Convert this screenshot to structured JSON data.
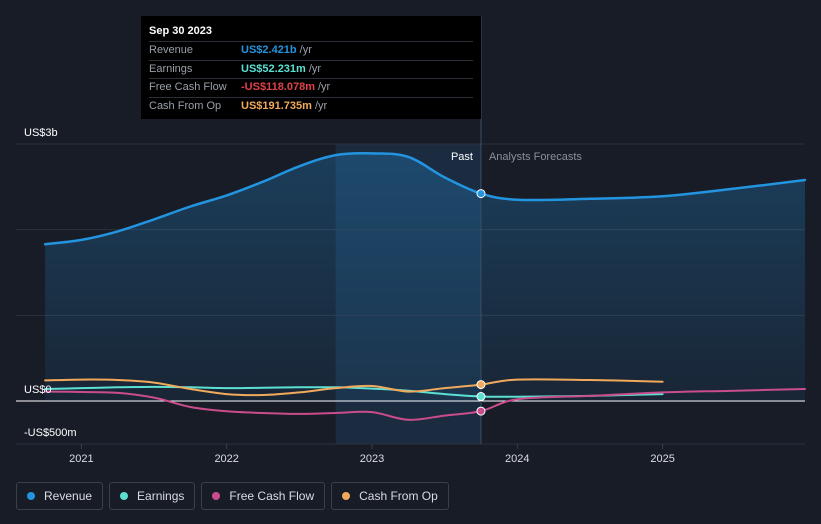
{
  "tooltip": {
    "date": "Sep 30 2023",
    "rows": [
      {
        "label": "Revenue",
        "value": "US$2.421b",
        "unit": "/yr",
        "color": "#2394df"
      },
      {
        "label": "Earnings",
        "value": "US$52.231m",
        "unit": "/yr",
        "color": "#5ce0d2"
      },
      {
        "label": "Free Cash Flow",
        "value": "-US$118.078m",
        "unit": "/yr",
        "color": "#e0414b"
      },
      {
        "label": "Cash From Op",
        "value": "US$191.735m",
        "unit": "/yr",
        "color": "#f1a95c"
      }
    ]
  },
  "labels": {
    "past": "Past",
    "forecast": "Analysts Forecasts"
  },
  "legend": [
    {
      "label": "Revenue",
      "color": "#2394df"
    },
    {
      "label": "Earnings",
      "color": "#5ce0d2"
    },
    {
      "label": "Free Cash Flow",
      "color": "#c94d8c"
    },
    {
      "label": "Cash From Op",
      "color": "#f1a95c"
    }
  ],
  "chart_data": {
    "type": "line",
    "y_unit": "US$ millions",
    "ylim": [
      -500,
      3000
    ],
    "y_ticks": [
      {
        "value": 3000,
        "label": "US$3b"
      },
      {
        "value": 0,
        "label": "US$0"
      },
      {
        "value": -500,
        "label": "-US$500m"
      }
    ],
    "xlim": [
      2020.55,
      2025.98
    ],
    "x_ticks": [
      {
        "value": 2021,
        "label": "2021"
      },
      {
        "value": 2022,
        "label": "2022"
      },
      {
        "value": 2023,
        "label": "2023"
      },
      {
        "value": 2024,
        "label": "2024"
      },
      {
        "value": 2025,
        "label": "2025"
      }
    ],
    "past_end": 2023.75,
    "highlight_start": 2022.75,
    "series": [
      {
        "name": "Revenue",
        "color": "#2394df",
        "fill": true,
        "points": [
          [
            2020.75,
            1830
          ],
          [
            2021.0,
            1880
          ],
          [
            2021.25,
            1980
          ],
          [
            2021.5,
            2120
          ],
          [
            2021.75,
            2270
          ],
          [
            2022.0,
            2400
          ],
          [
            2022.25,
            2560
          ],
          [
            2022.5,
            2740
          ],
          [
            2022.75,
            2870
          ],
          [
            2023.0,
            2890
          ],
          [
            2023.25,
            2850
          ],
          [
            2023.5,
            2610
          ],
          [
            2023.75,
            2421
          ],
          [
            2024.0,
            2350
          ],
          [
            2024.5,
            2360
          ],
          [
            2025.0,
            2390
          ],
          [
            2025.5,
            2480
          ],
          [
            2025.98,
            2580
          ]
        ]
      },
      {
        "name": "Earnings",
        "color": "#5ce0d2",
        "fill": false,
        "points": [
          [
            2020.75,
            140
          ],
          [
            2021.0,
            150
          ],
          [
            2021.25,
            160
          ],
          [
            2021.5,
            165
          ],
          [
            2021.75,
            160
          ],
          [
            2022.0,
            150
          ],
          [
            2022.25,
            155
          ],
          [
            2022.5,
            160
          ],
          [
            2022.75,
            160
          ],
          [
            2023.0,
            145
          ],
          [
            2023.25,
            120
          ],
          [
            2023.5,
            80
          ],
          [
            2023.75,
            52.231
          ],
          [
            2024.0,
            50
          ],
          [
            2024.5,
            60
          ],
          [
            2025.0,
            80
          ]
        ]
      },
      {
        "name": "Free Cash Flow",
        "color": "#c94d8c",
        "fill": false,
        "points": [
          [
            2020.75,
            110
          ],
          [
            2021.0,
            105
          ],
          [
            2021.25,
            95
          ],
          [
            2021.5,
            40
          ],
          [
            2021.75,
            -70
          ],
          [
            2022.0,
            -120
          ],
          [
            2022.25,
            -140
          ],
          [
            2022.5,
            -150
          ],
          [
            2022.75,
            -140
          ],
          [
            2023.0,
            -130
          ],
          [
            2023.25,
            -220
          ],
          [
            2023.5,
            -170
          ],
          [
            2023.75,
            -118.078
          ],
          [
            2024.0,
            20
          ],
          [
            2024.5,
            60
          ],
          [
            2025.0,
            100
          ],
          [
            2025.5,
            120
          ],
          [
            2025.98,
            140
          ]
        ]
      },
      {
        "name": "Cash From Op",
        "color": "#f1a95c",
        "fill": false,
        "points": [
          [
            2020.75,
            240
          ],
          [
            2021.0,
            250
          ],
          [
            2021.25,
            245
          ],
          [
            2021.5,
            215
          ],
          [
            2021.75,
            140
          ],
          [
            2022.0,
            80
          ],
          [
            2022.25,
            70
          ],
          [
            2022.5,
            100
          ],
          [
            2022.75,
            150
          ],
          [
            2023.0,
            175
          ],
          [
            2023.25,
            110
          ],
          [
            2023.5,
            150
          ],
          [
            2023.75,
            191.735
          ],
          [
            2024.0,
            250
          ],
          [
            2024.5,
            245
          ],
          [
            2025.0,
            225
          ]
        ]
      }
    ]
  }
}
